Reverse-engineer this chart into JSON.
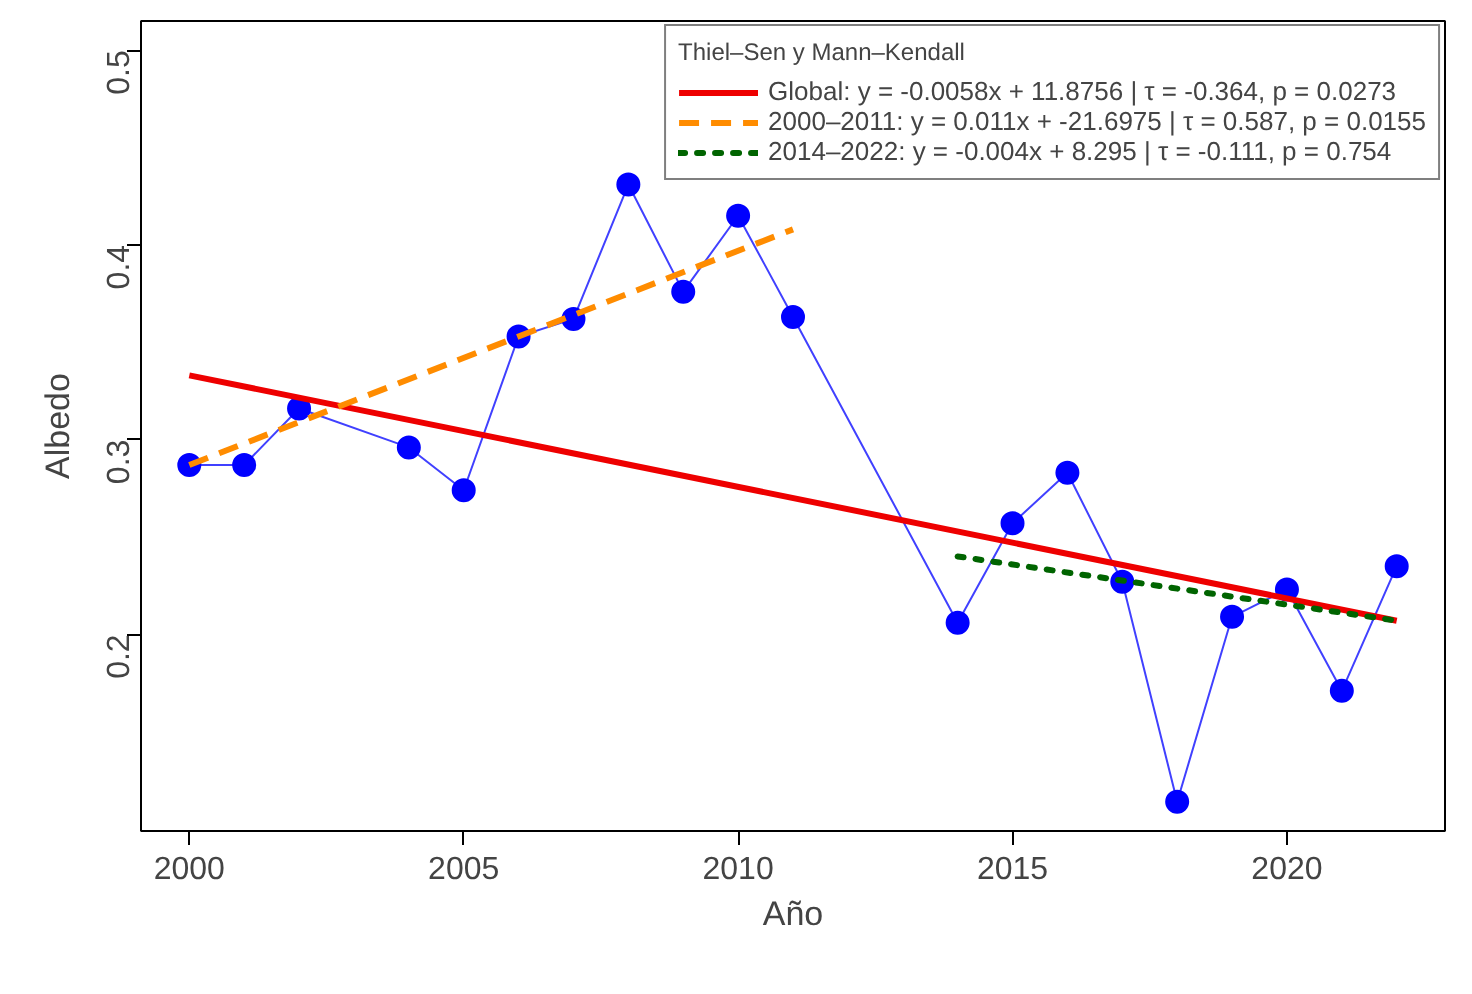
{
  "chart_data": {
    "type": "line",
    "xlabel": "Año",
    "ylabel": "Albedo",
    "legend_title": "Thiel–Sen y Mann–Kendall",
    "xlim": [
      1999.12,
      2022.88
    ],
    "ylim": [
      0.099,
      0.515
    ],
    "xticks": [
      2000,
      2005,
      2010,
      2015,
      2020
    ],
    "yticks": [
      0.2,
      0.3,
      0.4,
      0.5
    ],
    "grid": false,
    "legend": "top right",
    "series": [
      {
        "color": "#0000ff",
        "marker": "circle",
        "line_style": "solid",
        "x": [
          2000,
          2001,
          2002,
          2004,
          2005,
          2006,
          2007,
          2008,
          2009,
          2010,
          2011,
          2014,
          2015,
          2016,
          2017,
          2018,
          2019,
          2020,
          2021,
          2022
        ],
        "values": [
          0.287,
          0.287,
          0.316,
          0.296,
          0.274,
          0.353,
          0.362,
          0.431,
          0.376,
          0.415,
          0.363,
          0.206,
          0.257,
          0.283,
          0.227,
          0.114,
          0.209,
          0.223,
          0.171,
          0.235
        ]
      },
      {
        "type": "line",
        "name": "Global: y = -0.0058x + 11.8756 | τ = -0.364, p = 0.0273",
        "color": "#ee0000",
        "marker": "none",
        "line_style": "solid",
        "x": [
          2000,
          2022
        ],
        "values": [
          0.333,
          0.207
        ]
      },
      {
        "type": "line",
        "name": "2000–2011: y = 0.011x + -21.6975 | τ = 0.587, p = 0.0155",
        "color": "#ff8c00",
        "marker": "none",
        "line_style": "dashed",
        "x": [
          2000,
          2011
        ],
        "values": [
          0.287,
          0.408
        ]
      },
      {
        "type": "line",
        "name": "2014–2022: y = -0.004x + 8.295 | τ = -0.111, p = 0.754",
        "color": "#006400",
        "marker": "none",
        "line_style": "dotted",
        "x": [
          2014,
          2022
        ],
        "values": [
          0.24,
          0.207
        ]
      }
    ]
  }
}
